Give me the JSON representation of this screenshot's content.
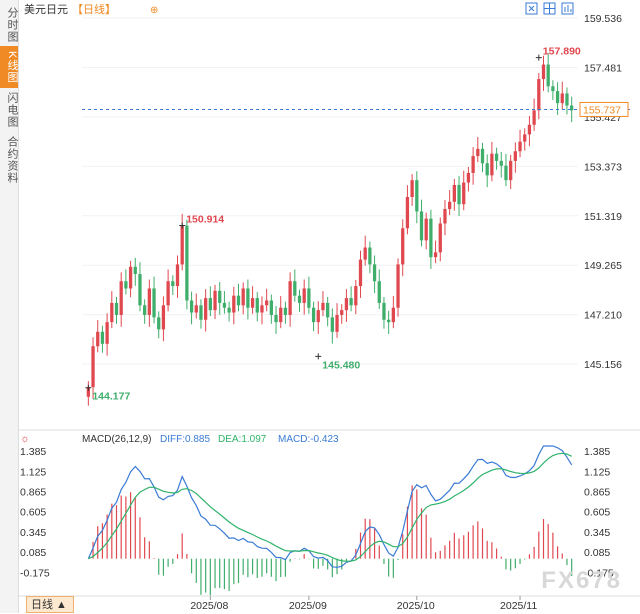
{
  "sidebar": {
    "tabs": [
      {
        "label": "分时图",
        "active": false
      },
      {
        "label": "K线图",
        "active": true
      },
      {
        "label": "闪电图",
        "active": false
      },
      {
        "label": "合约资料",
        "active": false
      }
    ]
  },
  "header": {
    "title": "美元日元",
    "period": "【日线】",
    "plus": "⊕"
  },
  "toolbar_icons": [
    "fit-icon",
    "grid-icon",
    "chart-type-icon"
  ],
  "bottom": {
    "period_tab": "日线 ▲"
  },
  "watermark": "FX678",
  "chart_data": [
    {
      "type": "candlestick",
      "y_ticks": [
        "159.536",
        "157.481",
        "155.427",
        "153.373",
        "151.319",
        "149.265",
        "147.210",
        "145.156"
      ],
      "ylim": [
        143.5,
        159.536
      ],
      "current_price": "155.737",
      "annotations": [
        {
          "label": "157.890",
          "value": 157.89,
          "color": "#e0484f"
        },
        {
          "label": "150.914",
          "value": 150.914,
          "color": "#e0484f"
        },
        {
          "label": "145.480",
          "value": 145.48,
          "color": "#3fae6b"
        },
        {
          "label": "144.177",
          "value": 144.177,
          "color": "#3fae6b"
        }
      ],
      "x_ticks": [
        "2025/08",
        "2025/09",
        "2025/10",
        "2025/11"
      ],
      "up_color": "#e0484f",
      "down_color": "#3fae6b",
      "closes": [
        144.2,
        145.9,
        146.5,
        146.0,
        146.9,
        147.7,
        147.2,
        148.6,
        148.3,
        149.2,
        148.9,
        147.6,
        147.2,
        148.3,
        147.1,
        146.6,
        147.6,
        148.6,
        148.4,
        149.3,
        150.91,
        147.8,
        147.3,
        147.6,
        147.0,
        147.9,
        147.4,
        148.2,
        147.7,
        147.5,
        147.3,
        148.0,
        147.6,
        148.3,
        147.5,
        147.9,
        147.3,
        147.6,
        147.8,
        147.2,
        146.9,
        147.5,
        147.2,
        148.6,
        148.0,
        147.7,
        148.3,
        147.5,
        146.9,
        147.4,
        147.7,
        147.1,
        146.5,
        147.2,
        147.4,
        147.9,
        147.6,
        148.4,
        149.5,
        150.0,
        149.3,
        148.6,
        147.7,
        147.0,
        146.9,
        147.5,
        149.3,
        150.8,
        152.1,
        152.8,
        151.5,
        150.3,
        151.2,
        149.6,
        149.8,
        151.0,
        151.6,
        151.9,
        152.6,
        151.8,
        152.7,
        153.1,
        153.8,
        154.1,
        153.5,
        153.0,
        153.9,
        153.6,
        153.4,
        152.8,
        153.6,
        154.0,
        154.4,
        154.7,
        155.1,
        155.7,
        157.0,
        157.6,
        156.7,
        156.5,
        156.0,
        156.4,
        155.9,
        155.7
      ],
      "macd": {
        "label": "MACD(26,12,9)",
        "diff_label": "DIFF:0.885",
        "dea_label": "DEA:1.097",
        "macd_label": "MACD:-0.423",
        "diff_color": "#3a7bd5",
        "dea_color": "#2fb36a",
        "y_ticks": [
          "1.385",
          "1.125",
          "0.865",
          "0.605",
          "0.345",
          "0.085",
          "-0.175"
        ],
        "ylim": [
          -0.3,
          1.45
        ]
      }
    }
  ]
}
